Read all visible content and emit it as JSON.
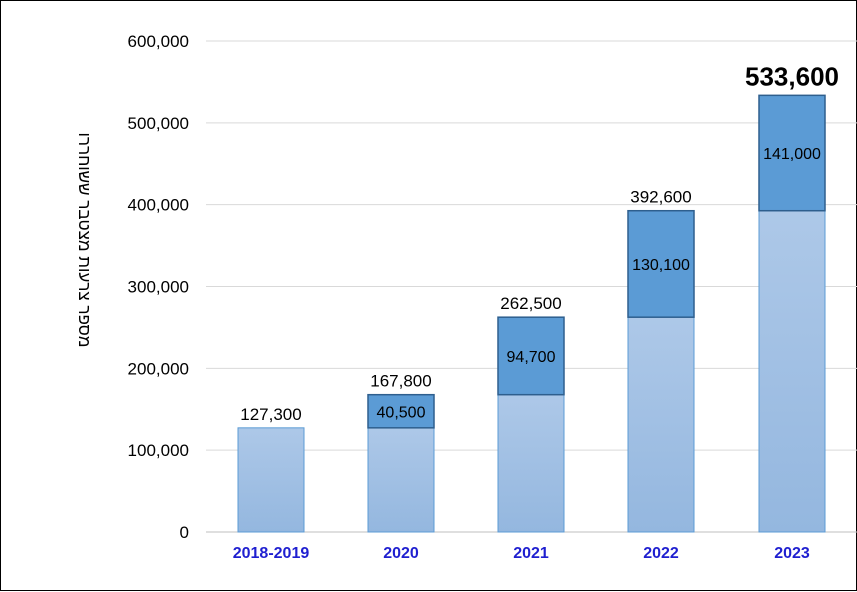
{
  "chart_data": {
    "type": "bar",
    "stacked": true,
    "categories": [
      "2018-2019",
      "2020",
      "2021",
      "2022",
      "2023"
    ],
    "series": [
      {
        "values": [
          127300,
          127300,
          167800,
          262500,
          392600
        ]
      },
      {
        "values": [
          0,
          40500,
          94700,
          130100,
          141000
        ]
      }
    ],
    "totals": [
      "127,300",
      "167,800",
      "262,500",
      "392,600",
      "533,600"
    ],
    "increment_labels": [
      "",
      "40,500",
      "94,700",
      "130,100",
      "141,000"
    ],
    "ylabel": "מספר צרעות מצטבר ששוחררו",
    "ylim": [
      0,
      600000
    ],
    "yticks": [
      0,
      100000,
      200000,
      300000,
      400000,
      500000,
      600000
    ],
    "ytick_labels": [
      "0",
      "100,000",
      "200,000",
      "300,000",
      "400,000",
      "500,000",
      "600,000"
    ],
    "grid": true,
    "legend": "none",
    "colors": {
      "base": "#a6c3e6",
      "base_stroke": "#5b9bd5",
      "increment": "#5b9bd5",
      "increment_stroke": "#2e5f8e",
      "category_text": "#1f1fd0",
      "grid": "#d9d9d9"
    }
  }
}
